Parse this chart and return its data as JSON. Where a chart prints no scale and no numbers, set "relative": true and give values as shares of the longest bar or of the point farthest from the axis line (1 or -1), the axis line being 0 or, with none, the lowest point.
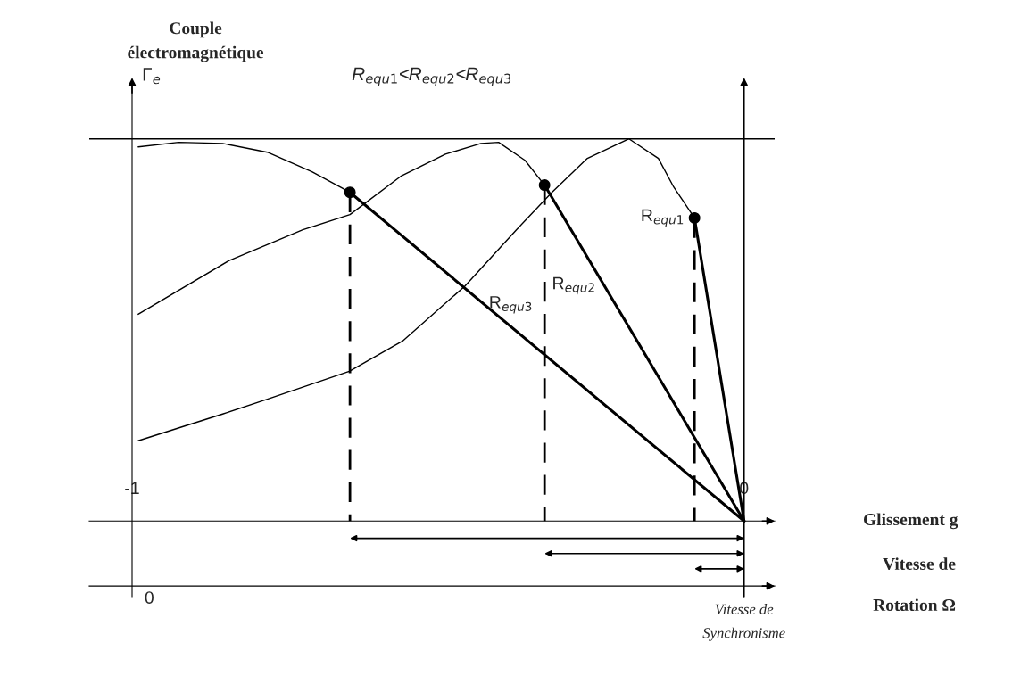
{
  "chart_data": {
    "type": "line",
    "relative": true,
    "title": "R$_{equ1}$<R$_{equ2}$<R$_{equ3}$",
    "ylabel": "Couple électromagnétique",
    "xlim": [
      -1.07,
      0.05
    ],
    "xticks": [
      -1,
      0
    ],
    "annotations": [
      "Γ$_{e}$",
      "0",
      "Vitesse de Synchronisme",
      "Glissement g",
      "Vitesse de Rotation Ω"
    ],
    "ref_lines": [
      {
        "axis": "y",
        "value": 1,
        "color": "#000000"
      }
    ],
    "grid": "x",
    "series": [
      {
        "color": "#000000",
        "x": [
          -0.99,
          -0.852,
          -0.779,
          -0.645,
          -0.558,
          -0.456,
          -0.372,
          -0.314,
          -0.256,
          -0.188,
          -0.14,
          -0.115,
          -0.081
        ],
        "values": [
          0.21,
          0.28,
          0.319,
          0.392,
          0.471,
          0.615,
          0.762,
          0.86,
          0.949,
          1,
          0.949,
          0.874,
          0.793
        ]
      },
      {
        "color": "#000000",
        "x": [
          -0.99,
          -0.842,
          -0.721,
          -0.644,
          -0.561,
          -0.488,
          -0.43,
          -0.401,
          -0.358,
          -0.326
        ],
        "values": [
          0.541,
          0.681,
          0.762,
          0.802,
          0.902,
          0.96,
          0.988,
          0.991,
          0.944,
          0.879
        ]
      },
      {
        "color": "#000000",
        "x": [
          -0.99,
          -0.924,
          -0.852,
          -0.779,
          -0.706,
          -0.644
        ],
        "values": [
          0.979,
          0.991,
          0.988,
          0.965,
          0.914,
          0.86
        ]
      },
      {
        "type": "scatter",
        "color": "#000000",
        "marker": "circle",
        "x": [
          -0.081,
          -0.326,
          -0.644
        ],
        "values": [
          0.793,
          0.879,
          0.86
        ]
      },
      {
        "name": "R$_{equ1}$",
        "color": "#000000",
        "x": [
          -0.081,
          0
        ],
        "values": [
          0.793,
          0
        ]
      },
      {
        "name": "R$_{equ2}$",
        "color": "#000000",
        "x": [
          -0.326,
          0
        ],
        "values": [
          0.879,
          0
        ]
      },
      {
        "name": "R$_{equ3}$",
        "color": "#000000",
        "x": [
          -0.644,
          0
        ],
        "values": [
          0.86,
          0
        ]
      },
      {
        "color": "#000000",
        "line_style": "dashed",
        "x": [
          -0.644,
          -0.644
        ],
        "values": [
          0.86,
          0
        ]
      },
      {
        "color": "#000000",
        "line_style": "dashed",
        "x": [
          -0.326,
          -0.326
        ],
        "values": [
          0.879,
          0
        ]
      },
      {
        "color": "#000000",
        "line_style": "dashed",
        "x": [
          -0.081,
          -0.081
        ],
        "values": [
          0.793,
          0
        ]
      }
    ]
  }
}
